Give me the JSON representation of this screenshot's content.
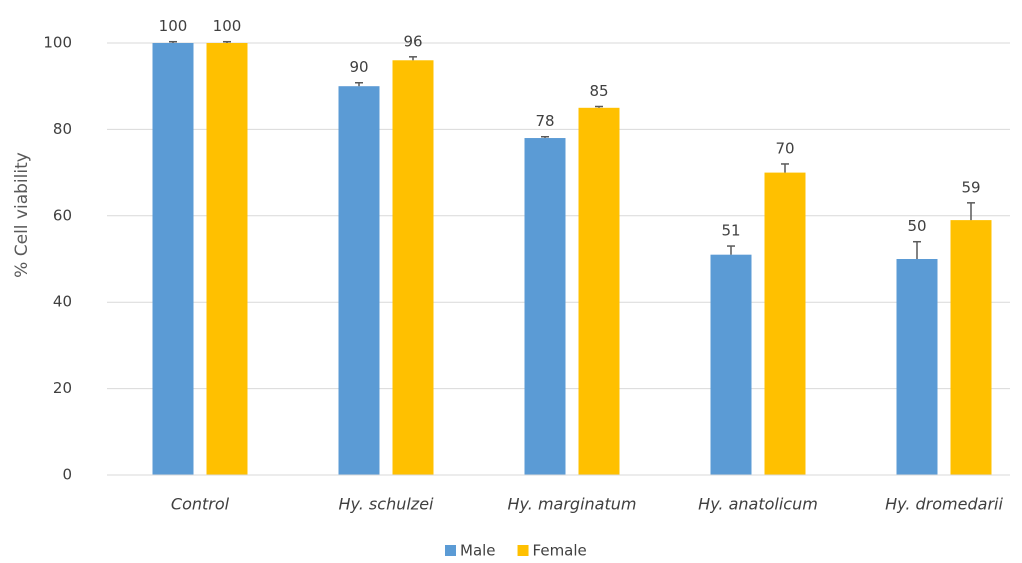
{
  "chart_data": {
    "type": "bar",
    "y_label": "% Cell viability",
    "categories": [
      "Control",
      "Hy. schulzei",
      "Hy. marginatum",
      "Hy. anatolicum",
      "Hy. dromedarii"
    ],
    "series": [
      {
        "name": "Male",
        "color": "#5b9bd5",
        "values": [
          100,
          90,
          78,
          51,
          50
        ],
        "errors": [
          0.3,
          0.8,
          0.3,
          2,
          4
        ]
      },
      {
        "name": "Female",
        "color": "#ffc000",
        "values": [
          100,
          96,
          85,
          70,
          59
        ],
        "errors": [
          0.3,
          0.8,
          0.3,
          2,
          4
        ]
      }
    ],
    "ylim": [
      0,
      100
    ],
    "yticks": [
      0,
      20,
      40,
      60,
      80,
      100
    ],
    "grid": true,
    "legend": "bottom"
  }
}
